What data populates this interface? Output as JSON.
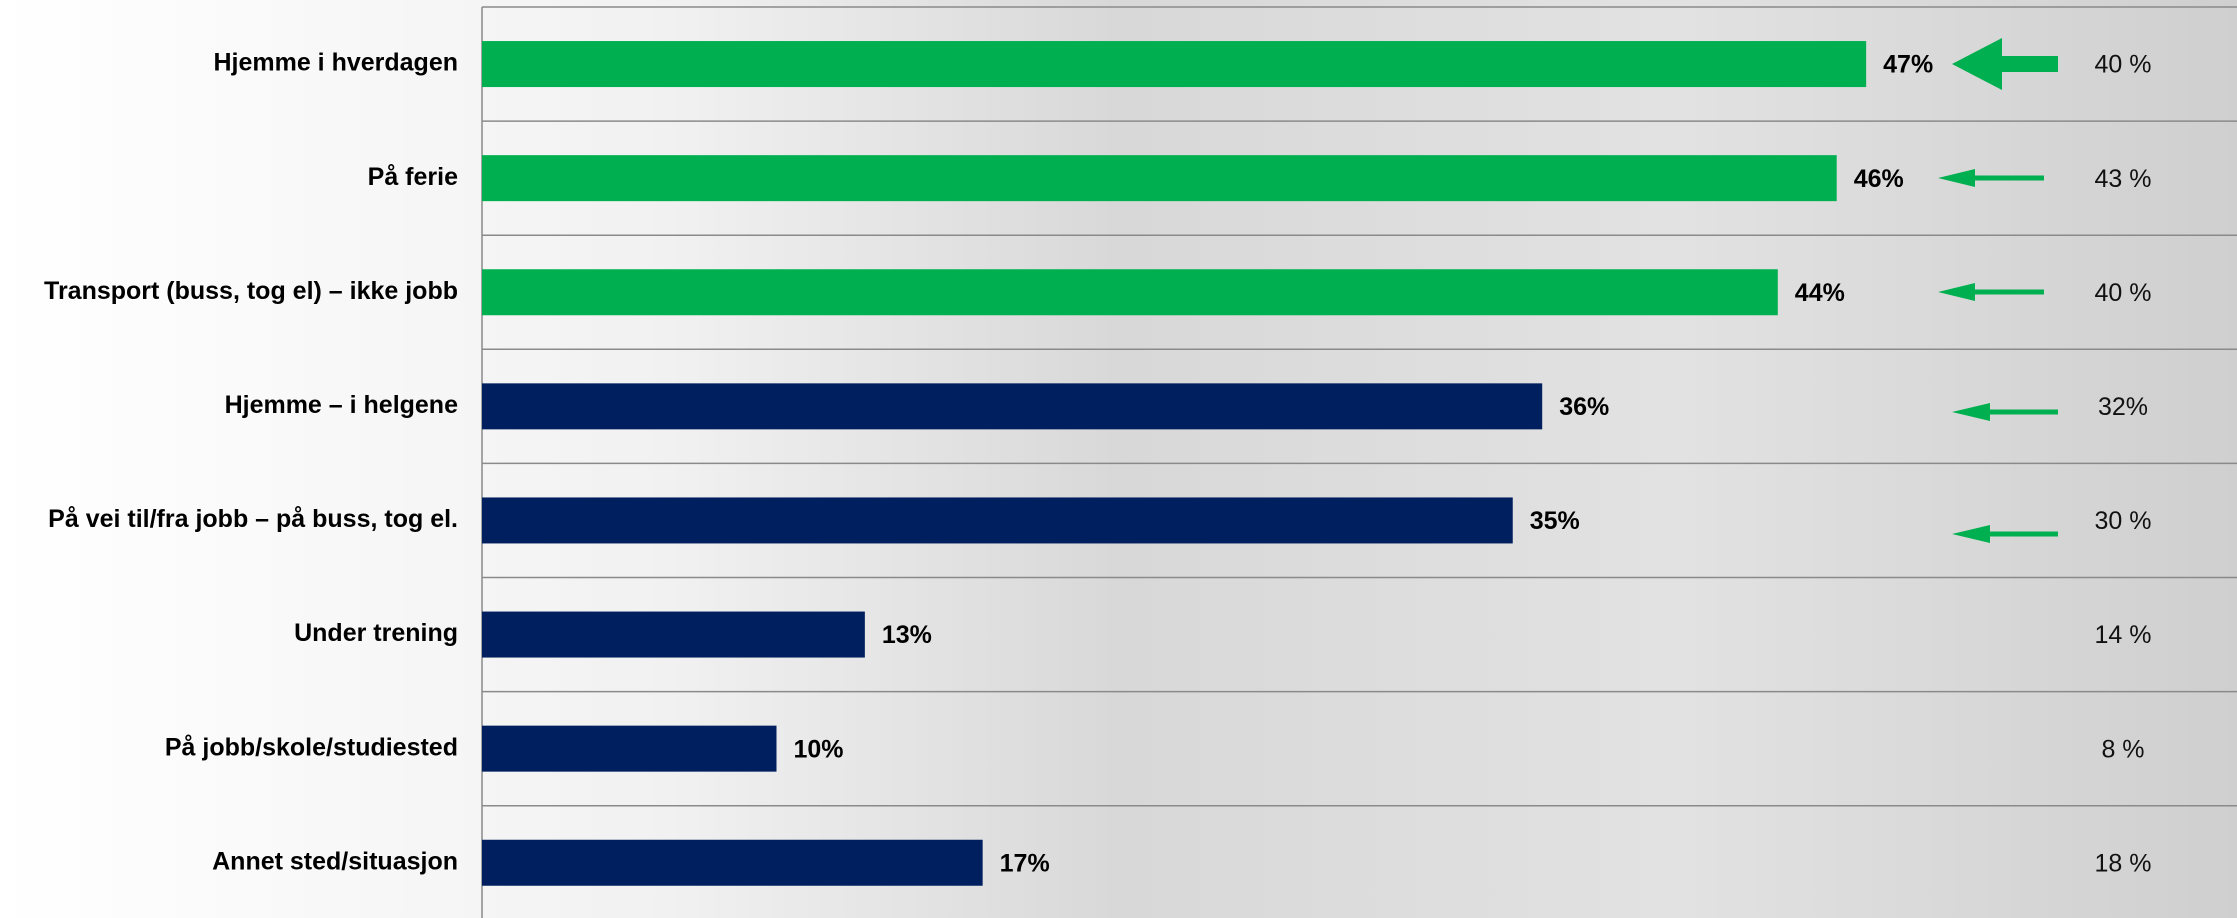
{
  "chart_data": {
    "type": "bar",
    "categories": [
      "Hjemme i hverdagen",
      "På ferie",
      "Transport (buss, tog el) – ikke jobb",
      "Hjemme – i helgene",
      "På vei til/fra jobb – på buss, tog el.",
      "Under trening",
      "På jobb/skole/studiested",
      "Annet sted/situasjon"
    ],
    "values": [
      47,
      46,
      44,
      36,
      35,
      13,
      10,
      17
    ],
    "value_labels": [
      "47%",
      "46%",
      "44%",
      "36%",
      "35%",
      "13%",
      "10%",
      "17%"
    ],
    "colors": [
      "#00b050",
      "#00b050",
      "#00b050",
      "#001f5f",
      "#001f5f",
      "#001f5f",
      "#001f5f",
      "#001f5f"
    ],
    "comparison": {
      "values": [
        40,
        43,
        40,
        32,
        30,
        14,
        8,
        18
      ],
      "value_labels": [
        "40 %",
        "43 %",
        "40 %",
        "32%",
        "30 %",
        "14 %",
        "8 %",
        "18 %"
      ]
    }
  }
}
